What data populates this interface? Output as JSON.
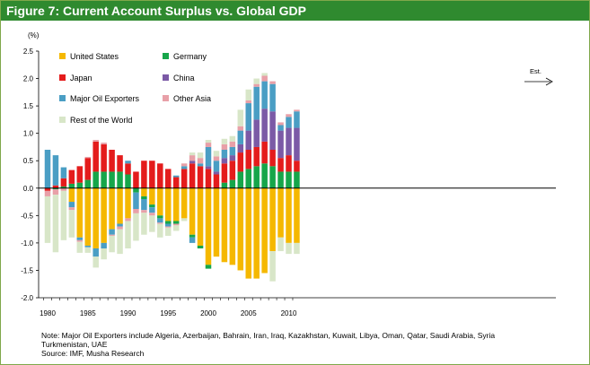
{
  "title": "Figure 7: Current Account  Surplus vs. Global GDP",
  "notes": [
    "Note: Major Oil Exporters include Algeria, Azerbaijan, Bahrain, Iran, Iraq, Kazakhstan, Kuwait, Libya, Oman, Qatar, Saudi Arabia, Syria",
    "Turkmenistan, UAE",
    "Source: IMF, Musha Research"
  ],
  "chart_data": {
    "type": "bar",
    "stacked": true,
    "ylabel": "(%)",
    "ylim": [
      -2.0,
      2.5
    ],
    "yticks": [
      "2.5",
      "2.0",
      "1.5",
      "1.0",
      "0.5",
      "0.0",
      "-0.5",
      "-1.0",
      "-1.5",
      "-2.0"
    ],
    "xticks": [
      "1980",
      "1985",
      "1990",
      "1995",
      "2000",
      "2005",
      "2010"
    ],
    "annotation": "Est.",
    "grid": false,
    "legend_position": "top-left",
    "x": [
      1980,
      1981,
      1982,
      1983,
      1984,
      1985,
      1986,
      1987,
      1988,
      1989,
      1990,
      1991,
      1992,
      1993,
      1994,
      1995,
      1996,
      1997,
      1998,
      1999,
      2000,
      2001,
      2002,
      2003,
      2004,
      2005,
      2006,
      2007,
      2008,
      2009,
      2010,
      2011
    ],
    "series": [
      {
        "name": "United States",
        "color": "#f5b800",
        "values": [
          0.0,
          0.0,
          0.0,
          -0.25,
          -0.9,
          -1.05,
          -1.1,
          -1.0,
          -0.75,
          -0.65,
          -0.55,
          0.0,
          -0.15,
          -0.3,
          -0.5,
          -0.6,
          -0.6,
          -0.55,
          -0.85,
          -1.05,
          -1.4,
          -1.25,
          -1.35,
          -1.4,
          -1.5,
          -1.65,
          -1.65,
          -1.55,
          -1.15,
          -0.9,
          -1.0,
          -1.0
        ]
      },
      {
        "name": "Germany",
        "color": "#16a64a",
        "values": [
          0.0,
          -0.02,
          0.03,
          0.08,
          0.1,
          0.15,
          0.3,
          0.3,
          0.3,
          0.3,
          0.25,
          -0.08,
          -0.05,
          -0.05,
          -0.05,
          -0.05,
          -0.05,
          0.0,
          -0.05,
          -0.05,
          -0.07,
          0.0,
          0.1,
          0.15,
          0.3,
          0.35,
          0.4,
          0.45,
          0.4,
          0.3,
          0.3,
          0.3
        ]
      },
      {
        "name": "Japan",
        "color": "#e41c1c",
        "values": [
          -0.05,
          0.05,
          0.15,
          0.25,
          0.3,
          0.4,
          0.55,
          0.5,
          0.4,
          0.3,
          0.2,
          0.3,
          0.5,
          0.5,
          0.45,
          0.35,
          0.2,
          0.35,
          0.45,
          0.4,
          0.35,
          0.25,
          0.35,
          0.35,
          0.35,
          0.35,
          0.35,
          0.4,
          0.3,
          0.25,
          0.3,
          0.2
        ]
      },
      {
        "name": "China",
        "color": "#7b5aa6",
        "values": [
          0,
          0,
          0,
          0,
          0,
          0,
          0,
          0,
          0,
          0,
          0,
          0,
          0,
          0,
          0,
          0,
          0,
          0,
          0.05,
          0,
          0.05,
          0.05,
          0.1,
          0.1,
          0.15,
          0.35,
          0.5,
          0.6,
          0.7,
          0.5,
          0.5,
          0.6
        ]
      },
      {
        "name": "Major Oil Exporters",
        "color": "#4a9ec4",
        "values": [
          0.7,
          0.55,
          0.2,
          -0.1,
          -0.05,
          -0.03,
          -0.15,
          -0.1,
          -0.1,
          -0.05,
          0.05,
          -0.3,
          -0.2,
          -0.1,
          -0.08,
          -0.05,
          0.03,
          0.05,
          -0.1,
          0.05,
          0.35,
          0.2,
          0.15,
          0.15,
          0.25,
          0.5,
          0.6,
          0.5,
          0.5,
          0.1,
          0.2,
          0.3
        ]
      },
      {
        "name": "Other Asia",
        "color": "#e8a0a8",
        "values": [
          -0.1,
          -0.1,
          -0.05,
          -0.05,
          -0.03,
          0.02,
          0.03,
          0.03,
          -0.02,
          -0.05,
          -0.05,
          -0.08,
          -0.05,
          -0.05,
          -0.02,
          -0.02,
          -0.03,
          0.05,
          0.1,
          0.1,
          0.08,
          0.08,
          0.1,
          0.1,
          0.08,
          0.05,
          0.05,
          0.1,
          0.05,
          0.05,
          0.05,
          0.03
        ]
      },
      {
        "name": "Rest of the World",
        "color": "#d8e6c8",
        "values": [
          -0.85,
          -1.05,
          -0.9,
          -0.5,
          -0.2,
          -0.1,
          -0.2,
          -0.2,
          -0.3,
          -0.45,
          -0.5,
          -0.5,
          -0.4,
          -0.3,
          -0.25,
          -0.15,
          -0.1,
          -0.05,
          0.05,
          0.1,
          0.05,
          0.1,
          0.1,
          0.1,
          0.3,
          0.2,
          0.1,
          0.05,
          -0.55,
          -0.25,
          -0.2,
          -0.2
        ]
      }
    ]
  }
}
